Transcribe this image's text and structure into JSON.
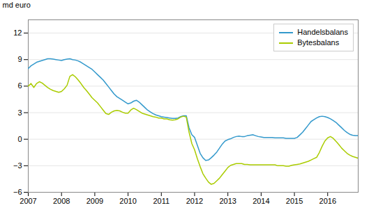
{
  "chart_data": {
    "type": "line",
    "ylabel": "md euro",
    "x": [
      2007.0,
      2007.083,
      2007.167,
      2007.25,
      2007.333,
      2007.417,
      2007.5,
      2007.583,
      2007.667,
      2007.75,
      2007.833,
      2007.917,
      2008.0,
      2008.083,
      2008.167,
      2008.25,
      2008.333,
      2008.417,
      2008.5,
      2008.583,
      2008.667,
      2008.75,
      2008.833,
      2008.917,
      2009.0,
      2009.083,
      2009.167,
      2009.25,
      2009.333,
      2009.417,
      2009.5,
      2009.583,
      2009.667,
      2009.75,
      2009.833,
      2009.917,
      2010.0,
      2010.083,
      2010.167,
      2010.25,
      2010.333,
      2010.417,
      2010.5,
      2010.583,
      2010.667,
      2010.75,
      2010.833,
      2010.917,
      2011.0,
      2011.083,
      2011.167,
      2011.25,
      2011.333,
      2011.417,
      2011.5,
      2011.583,
      2011.667,
      2011.75,
      2011.833,
      2011.917,
      2012.0,
      2012.083,
      2012.167,
      2012.25,
      2012.333,
      2012.417,
      2012.5,
      2012.583,
      2012.667,
      2012.75,
      2012.833,
      2012.917,
      2013.0,
      2013.083,
      2013.167,
      2013.25,
      2013.333,
      2013.417,
      2013.5,
      2013.583,
      2013.667,
      2013.75,
      2013.833,
      2013.917,
      2014.0,
      2014.083,
      2014.167,
      2014.25,
      2014.333,
      2014.417,
      2014.5,
      2014.583,
      2014.667,
      2014.75,
      2014.833,
      2014.917,
      2015.0,
      2015.083,
      2015.167,
      2015.25,
      2015.333,
      2015.417,
      2015.5,
      2015.583,
      2015.667,
      2015.75,
      2015.833,
      2015.917,
      2016.0,
      2016.083,
      2016.167,
      2016.25,
      2016.333,
      2016.417,
      2016.5,
      2016.583,
      2016.667,
      2016.75,
      2016.833,
      2016.917
    ],
    "series": [
      {
        "name": "Handelsbalans",
        "color": "#3399cc",
        "values": [
          8.0,
          8.3,
          8.5,
          8.7,
          8.8,
          8.9,
          9.0,
          9.1,
          9.1,
          9.05,
          9.0,
          8.95,
          8.9,
          9.0,
          9.05,
          9.1,
          9.0,
          8.95,
          8.85,
          8.7,
          8.5,
          8.3,
          8.1,
          7.9,
          7.6,
          7.3,
          7.0,
          6.7,
          6.3,
          5.9,
          5.5,
          5.1,
          4.8,
          4.6,
          4.4,
          4.2,
          4.0,
          4.1,
          4.3,
          4.4,
          4.2,
          3.9,
          3.6,
          3.3,
          3.1,
          2.9,
          2.75,
          2.65,
          2.55,
          2.5,
          2.45,
          2.4,
          2.35,
          2.35,
          2.4,
          2.55,
          2.65,
          2.65,
          1.3,
          0.5,
          0.2,
          -0.7,
          -1.6,
          -2.1,
          -2.4,
          -2.35,
          -2.1,
          -1.8,
          -1.45,
          -1.0,
          -0.55,
          -0.2,
          -0.05,
          0.05,
          0.2,
          0.3,
          0.35,
          0.3,
          0.3,
          0.4,
          0.45,
          0.5,
          0.4,
          0.3,
          0.25,
          0.2,
          0.2,
          0.2,
          0.2,
          0.15,
          0.15,
          0.15,
          0.15,
          0.1,
          0.1,
          0.1,
          0.1,
          0.2,
          0.5,
          0.8,
          1.2,
          1.6,
          2.0,
          2.2,
          2.4,
          2.55,
          2.6,
          2.55,
          2.45,
          2.3,
          2.1,
          1.9,
          1.6,
          1.3,
          1.0,
          0.75,
          0.55,
          0.45,
          0.4,
          0.4
        ]
      },
      {
        "name": "Bytesbalans",
        "color": "#aacc00",
        "values": [
          6.0,
          6.3,
          5.85,
          6.3,
          6.5,
          6.35,
          6.1,
          5.85,
          5.65,
          5.5,
          5.4,
          5.3,
          5.4,
          5.7,
          6.1,
          7.1,
          7.3,
          7.05,
          6.7,
          6.3,
          5.85,
          5.5,
          5.1,
          4.7,
          4.4,
          4.1,
          3.7,
          3.3,
          2.9,
          2.8,
          3.05,
          3.2,
          3.25,
          3.2,
          3.05,
          2.95,
          2.95,
          3.3,
          3.5,
          3.35,
          3.15,
          2.95,
          2.85,
          2.75,
          2.65,
          2.55,
          2.5,
          2.4,
          2.4,
          2.3,
          2.3,
          2.2,
          2.15,
          2.2,
          2.3,
          2.5,
          2.6,
          2.5,
          0.8,
          -0.5,
          -1.2,
          -2.2,
          -3.1,
          -3.9,
          -4.4,
          -4.85,
          -5.1,
          -5.0,
          -4.7,
          -4.4,
          -4.0,
          -3.6,
          -3.2,
          -2.95,
          -2.85,
          -2.75,
          -2.75,
          -2.75,
          -2.85,
          -2.85,
          -2.9,
          -2.9,
          -2.9,
          -2.9,
          -2.9,
          -2.9,
          -2.9,
          -2.9,
          -2.9,
          -2.9,
          -3.0,
          -3.0,
          -3.0,
          -3.05,
          -3.05,
          -2.95,
          -2.9,
          -2.85,
          -2.8,
          -2.7,
          -2.6,
          -2.5,
          -2.35,
          -2.2,
          -2.05,
          -1.5,
          -0.8,
          -0.2,
          0.15,
          0.3,
          0.1,
          -0.25,
          -0.6,
          -1.0,
          -1.3,
          -1.6,
          -1.8,
          -1.95,
          -2.05,
          -2.15
        ]
      }
    ],
    "xlim": [
      2007.0,
      2016.917
    ],
    "xticks": [
      2007,
      2008,
      2009,
      2010,
      2011,
      2012,
      2013,
      2014,
      2015,
      2016
    ],
    "ylim": [
      -6,
      13.5
    ],
    "yticks": [
      -6,
      -3,
      0,
      3,
      6,
      9,
      12
    ],
    "grid": true,
    "legend": "upper right"
  }
}
